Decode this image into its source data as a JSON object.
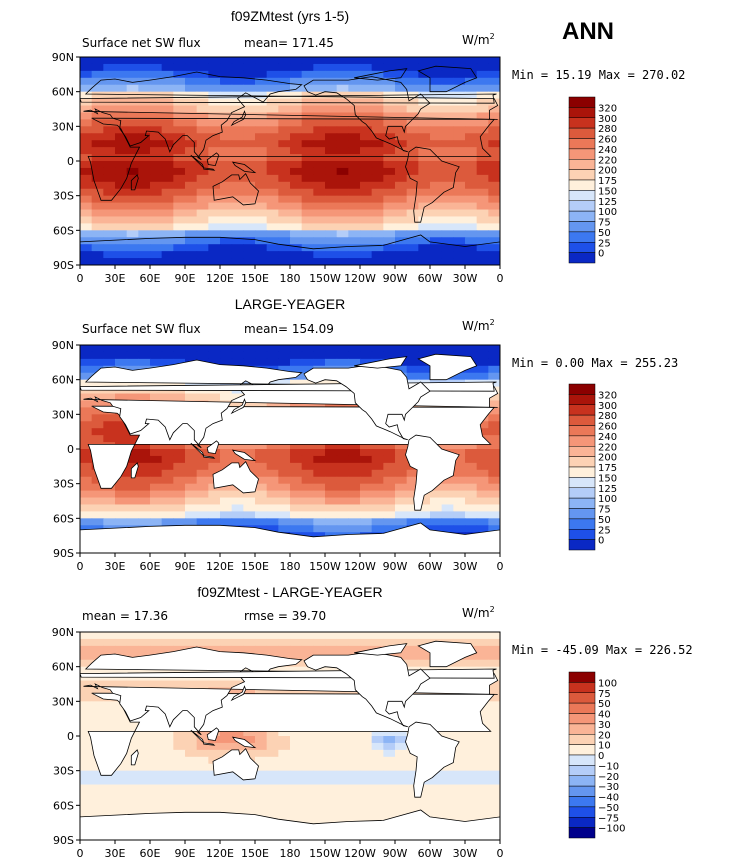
{
  "season": "ANN",
  "colors": {
    "abs": [
      "#00008b",
      "#0a28c4",
      "#1e50e8",
      "#3c78f0",
      "#6496f0",
      "#8cb4f5",
      "#b4cdf8",
      "#d7e6fa",
      "#fff0dc",
      "#fcd2b4",
      "#fab496",
      "#f59678",
      "#eb7858",
      "#dc5a3c",
      "#c8321e",
      "#aa140a",
      "#8b0000"
    ],
    "diff": [
      "#00008b",
      "#0a28c4",
      "#1e50e8",
      "#3c78f0",
      "#6496f0",
      "#8cb4f5",
      "#b4cdf8",
      "#d7e6fa",
      "#fff0dc",
      "#fcd2b4",
      "#fab496",
      "#f59678",
      "#eb7858",
      "#dc5a3c",
      "#c8321e",
      "#8b0000"
    ]
  },
  "lat_labels": [
    "90N",
    "60N",
    "30N",
    "0",
    "30S",
    "60S",
    "90S"
  ],
  "lon_labels": [
    "0",
    "30E",
    "60E",
    "90E",
    "120E",
    "150E",
    "180",
    "150W",
    "120W",
    "90W",
    "60W",
    "30W",
    "0"
  ],
  "panels": [
    {
      "title": "f09ZMtest (yrs 1-5)",
      "left_label": "Surface net SW flux",
      "mean_text": "mean= 171.45",
      "units": "W/m",
      "units_sup": "2",
      "minmax": "Min =   15.19 Max = 270.02",
      "colorbar": [
        "320",
        "300",
        "280",
        "260",
        "240",
        "220",
        "200",
        "175",
        "150",
        "125",
        "100",
        "75",
        "50",
        "25",
        "0"
      ],
      "land_masked": false
    },
    {
      "title": "LARGE-YEAGER",
      "left_label": "Surface net SW flux",
      "mean_text": "mean= 154.09",
      "units": "W/m",
      "units_sup": "2",
      "minmax": "Min =    0.00 Max = 255.23",
      "colorbar": [
        "320",
        "300",
        "280",
        "260",
        "240",
        "220",
        "200",
        "175",
        "150",
        "125",
        "100",
        "75",
        "50",
        "25",
        "0"
      ],
      "land_masked": true
    },
    {
      "title": "f09ZMtest - LARGE-YEAGER",
      "left_label": "mean =   17.36",
      "mean_text": "rmse =   39.70",
      "units": "W/m",
      "units_sup": "2",
      "minmax": "Min = -45.09 Max = 226.52",
      "colorbar": [
        "100",
        "75",
        "50",
        "40",
        "30",
        "20",
        "10",
        "0",
        "−10",
        "−20",
        "−30",
        "−40",
        "−50",
        "−75",
        "−100"
      ],
      "land_masked": true
    }
  ]
}
